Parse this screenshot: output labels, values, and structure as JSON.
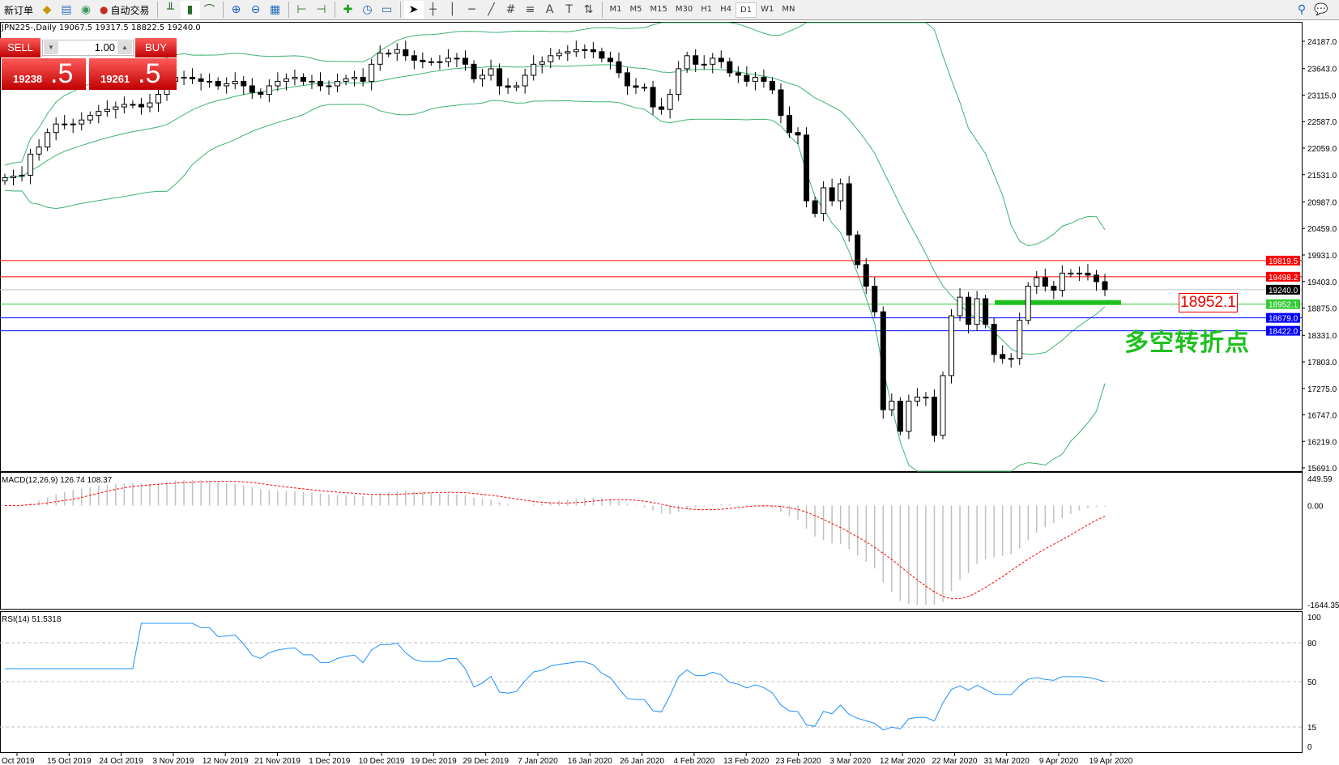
{
  "toolbar": {
    "new_order": "新订单",
    "auto_trading": "自动交易",
    "timeframes": [
      "M1",
      "M5",
      "M15",
      "M30",
      "H1",
      "H4",
      "D1",
      "W1",
      "MN"
    ],
    "selected_timeframe": "D1"
  },
  "chart_info": "JPN225-,Daily  19067.5 19317.5 18822.5 19240.0",
  "trade_panel": {
    "sell_label": "SELL",
    "buy_label": "BUY",
    "lot": "1.00",
    "bid_main": "19238",
    "bid_frac": ".5",
    "ask_main": "19261",
    "ask_frac": ".5",
    "color": "#d40000"
  },
  "annotation": {
    "price_box": "18952.1",
    "text": "多空转折点",
    "color": "#1ec01e"
  },
  "chart_data": {
    "type": "candlestick",
    "symbol": "JPN225-",
    "timeframe": "Daily",
    "price_ticks": [
      "24187.0",
      "23643.0",
      "23115.0",
      "22587.0",
      "22059.0",
      "21531.0",
      "20987.0",
      "20459.0",
      "19931.0",
      "19403.0",
      "18875.0",
      "18331.0",
      "17803.0",
      "17275.0",
      "16747.0",
      "16219.0",
      "15691.0"
    ],
    "ylim": [
      15691,
      24187
    ],
    "closes": [
      21470,
      21500,
      21520,
      21940,
      22080,
      22370,
      22540,
      22540,
      22540,
      22620,
      22710,
      22790,
      22830,
      22880,
      22930,
      22930,
      22880,
      22960,
      23130,
      23390,
      23470,
      23470,
      23440,
      23390,
      23390,
      23300,
      23340,
      23390,
      23300,
      23170,
      23130,
      23300,
      23390,
      23440,
      23470,
      23390,
      23390,
      23300,
      23300,
      23390,
      23440,
      23470,
      23390,
      23730,
      23950,
      23950,
      24020,
      23900,
      23810,
      23780,
      23780,
      23780,
      23850,
      23850,
      23730,
      23440,
      23510,
      23640,
      23300,
      23270,
      23300,
      23510,
      23730,
      23780,
      23900,
      23950,
      23980,
      24020,
      24020,
      23980,
      23850,
      23780,
      23560,
      23300,
      23270,
      23270,
      22880,
      22830,
      23130,
      23640,
      23900,
      23730,
      23730,
      23850,
      23780,
      23560,
      23510,
      23390,
      23470,
      23390,
      23220,
      22710,
      22370,
      22320,
      21010,
      20760,
      21270,
      21010,
      21350,
      20330,
      19740,
      19310,
      18800,
      16850,
      17020,
      16420,
      17020,
      17100,
      17100,
      16340,
      17530,
      18720,
      19090,
      18550,
      19060,
      18550,
      17950,
      17870,
      17870,
      18630,
      19310,
      19480,
      19310,
      19230,
      19570,
      19570,
      19570,
      19530,
      19400,
      19240
    ],
    "levels": [
      {
        "price": 19819.5,
        "label": "19819.5",
        "color": "#ff0000"
      },
      {
        "price": 19498.2,
        "label": "19498.2",
        "color": "#ff0000"
      },
      {
        "price": 19240.0,
        "label": "19240.0",
        "color": "#000000",
        "line": "#c0c0c0"
      },
      {
        "price": 18952.1,
        "label": "18952.1",
        "color": "#33cc33"
      },
      {
        "price": 18679.0,
        "label": "18679.0",
        "color": "#0000ff"
      },
      {
        "price": 18422.0,
        "label": "18422.0",
        "color": "#0000ff"
      }
    ],
    "bollinger_color": "#3cb371",
    "macd": {
      "label": "MACD(12,26,9) 126.74 108.37",
      "ticks": [
        "449.59",
        "0.00",
        "-1644.35"
      ],
      "ylim": [
        -1644.35,
        449.59
      ],
      "hist_color": "#c0c0c0",
      "signal_color": "#ff0000"
    },
    "rsi": {
      "label": "RSI(14) 51.5318",
      "ticks": [
        "100",
        "80",
        "50",
        "15",
        "0"
      ],
      "color": "#1e90ff"
    },
    "x_labels": [
      "Oct 2019",
      "15 Oct 2019",
      "24 Oct 2019",
      "3 Nov 2019",
      "12 Nov 2019",
      "21 Nov 2019",
      "1 Dec 2019",
      "10 Dec 2019",
      "19 Dec 2019",
      "29 Dec 2019",
      "7 Jan 2020",
      "16 Jan 2020",
      "26 Jan 2020",
      "4 Feb 2020",
      "13 Feb 2020",
      "23 Feb 2020",
      "3 Mar 2020",
      "12 Mar 2020",
      "22 Mar 2020",
      "31 Mar 2020",
      "9 Apr 2020",
      "19 Apr 2020"
    ]
  }
}
